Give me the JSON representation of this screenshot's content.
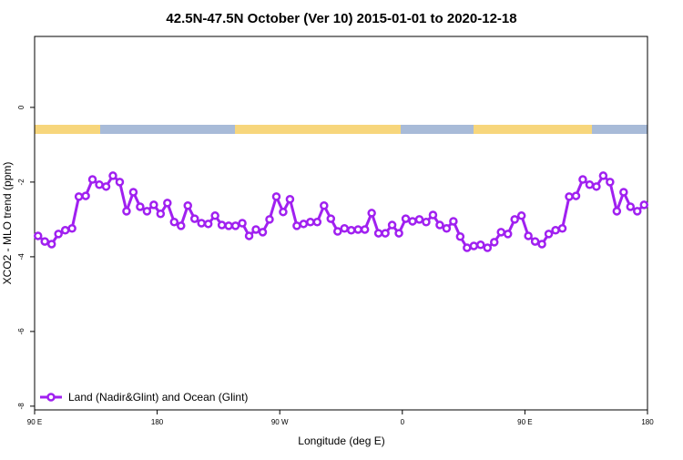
{
  "chart_data": {
    "type": "line",
    "title": "42.5N-47.5N October (Ver 10)   2015-01-01 to 2020-12-18",
    "x_label": "Longitude (deg E)",
    "y_label": "XCO2 - MLO trend (ppm)",
    "x": [
      92.5,
      97.5,
      102.5,
      107.5,
      112.5,
      117.5,
      122.5,
      127.5,
      132.5,
      137.5,
      142.5,
      147.5,
      152.5,
      157.5,
      162.5,
      167.5,
      172.5,
      177.5,
      182.5,
      187.5,
      192.5,
      197.5,
      202.5,
      207.5,
      212.5,
      217.5,
      222.5,
      227.5,
      232.5,
      237.5,
      242.5,
      247.5,
      252.5,
      257.5,
      262.5,
      267.5,
      272.5,
      277.5,
      282.5,
      287.5,
      292.5,
      297.5,
      302.5,
      307.5,
      312.5,
      317.5,
      322.5,
      327.5,
      332.5,
      337.5,
      342.5,
      347.5,
      352.5,
      357.5,
      362.5,
      367.5,
      372.5,
      377.5,
      382.5,
      387.5,
      392.5,
      397.5,
      402.5,
      407.5,
      412.5,
      417.5,
      422.5,
      427.5,
      432.5,
      437.5,
      442.5,
      447.5,
      452.5,
      457.5,
      462.5,
      467.5,
      472.5,
      477.5,
      482.5,
      487.5,
      492.5,
      497.5,
      502.5,
      507.5,
      512.5,
      517.5,
      522.5,
      527.5,
      532.5,
      537.5
    ],
    "series": [
      {
        "name": "Land (Nadir&Glint) and Ocean (Glint)",
        "color": "#a020f0",
        "values": [
          -3.44,
          -3.59,
          -3.66,
          -3.39,
          -3.29,
          -3.24,
          -2.39,
          -2.37,
          -1.93,
          -2.07,
          -2.12,
          -1.83,
          -2.0,
          -2.78,
          -2.27,
          -2.66,
          -2.78,
          -2.61,
          -2.85,
          -2.56,
          -3.07,
          -3.17,
          -2.63,
          -2.98,
          -3.1,
          -3.12,
          -2.9,
          -3.15,
          -3.17,
          -3.17,
          -3.1,
          -3.44,
          -3.27,
          -3.34,
          -3.0,
          -2.39,
          -2.8,
          -2.46,
          -3.17,
          -3.12,
          -3.07,
          -3.07,
          -2.63,
          -2.98,
          -3.32,
          -3.24,
          -3.29,
          -3.27,
          -3.27,
          -2.83,
          -3.37,
          -3.37,
          -3.15,
          -3.37,
          -2.98,
          -3.05,
          -3.0,
          -3.07,
          -2.88,
          -3.15,
          -3.24,
          -3.05,
          -3.46,
          -3.76,
          -3.71,
          -3.68,
          -3.76,
          -3.61,
          -3.34,
          -3.39,
          -3.0,
          -2.9,
          -3.44,
          -3.59,
          -3.66,
          -3.39,
          -3.29,
          -3.24,
          -2.39,
          -2.37,
          -1.93,
          -2.07,
          -2.12,
          -1.83,
          -2.0,
          -2.78,
          -2.27,
          -2.66,
          -2.78,
          -2.61
        ]
      }
    ],
    "xlim": [
      90,
      540
    ],
    "xticks": [
      {
        "value": 90,
        "label": "90 E"
      },
      180,
      {
        "value": 270,
        "label": "90 W"
      },
      {
        "value": 360,
        "label": "0"
      },
      {
        "value": 450,
        "label": "90 E"
      },
      {
        "value": 540,
        "label": "180"
      }
    ],
    "ylim": [
      -8.1,
      1.9
    ],
    "yticks": [
      0,
      -2,
      -4,
      -6,
      -8
    ],
    "legend": "bottom-left"
  }
}
